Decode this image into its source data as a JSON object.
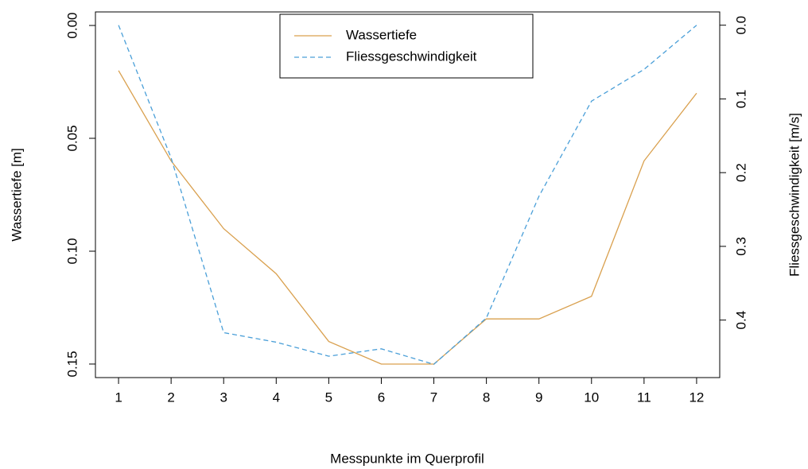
{
  "chart_data": {
    "type": "line",
    "xlabel": "Messpunkte im Querprofil",
    "ylabel": "Wassertiefe [m]",
    "y2label": "Fliessgeschwindigkeit [m/s]",
    "x": [
      1,
      2,
      3,
      4,
      5,
      6,
      7,
      8,
      9,
      10,
      11,
      12
    ],
    "xlim": [
      0.56,
      12.44
    ],
    "xticks": [
      1,
      2,
      3,
      4,
      5,
      6,
      7,
      8,
      9,
      10,
      11,
      12
    ],
    "ylim": [
      -0.006,
      0.156
    ],
    "yticks": [
      {
        "value": 0,
        "label": "0.00"
      },
      0.05,
      {
        "value": 0.1,
        "label": "0.10"
      },
      0.15
    ],
    "y_inverted": true,
    "y2lim": [
      -0.018,
      0.478
    ],
    "y2ticks": [
      {
        "value": 0,
        "label": "0.0"
      },
      0.1,
      0.2,
      0.3,
      0.4
    ],
    "y2_inverted": true,
    "legend": "top",
    "series": [
      {
        "name": "Wassertiefe",
        "color": "#d9a04e",
        "dash": "solid",
        "values": [
          0.02,
          0.06,
          0.09,
          0.11,
          0.14,
          0.15,
          0.15,
          0.13,
          0.13,
          0.12,
          0.06,
          0.03
        ]
      },
      {
        "name": "Fliessgeschwindigkeit",
        "color": "#4a9fd8",
        "dash": "dashed",
        "axis": "y2",
        "values": [
          0.0,
          0.18,
          0.417,
          0.43,
          0.449,
          0.439,
          0.46,
          0.397,
          0.232,
          0.103,
          0.06,
          0.0
        ]
      }
    ]
  }
}
